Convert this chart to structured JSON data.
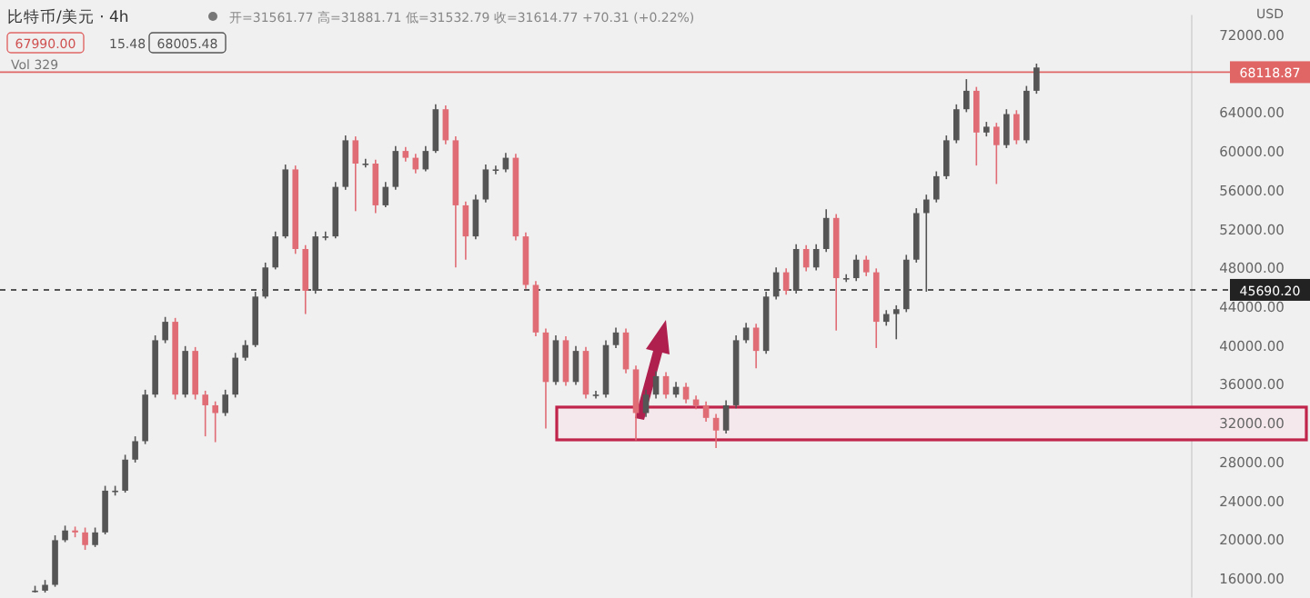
{
  "chart_data": {
    "type": "candlestick",
    "title": "比特币/美元 · 4h",
    "subtitle": "开=31561.77 高=31881.71 低=31532.79 收=31614.77 +70.31 (+0.22%)",
    "annotations": [
      "67990.00",
      "15.48",
      "68005.48",
      "Vol 329",
      "USD"
    ],
    "categories": [
      null,
      null,
      null,
      null,
      null,
      null,
      null,
      null,
      null,
      null,
      null,
      null,
      null,
      null,
      null,
      null,
      null,
      null,
      null,
      null,
      null,
      null,
      null,
      null,
      null,
      null,
      null,
      null,
      null,
      null,
      null,
      null,
      null,
      null,
      null,
      null,
      null,
      null,
      null,
      null,
      null,
      null,
      null,
      null,
      null,
      null,
      null,
      null,
      null,
      null,
      null,
      null,
      null,
      null,
      null,
      null,
      null,
      null,
      null,
      null,
      null,
      null,
      null,
      null,
      null,
      null,
      null,
      null,
      null,
      null,
      null,
      null,
      null,
      null,
      null,
      null,
      null,
      null,
      null,
      null,
      null,
      null,
      null,
      null,
      null,
      null,
      null,
      null,
      null,
      null,
      null,
      null,
      null,
      null,
      null,
      null,
      null,
      null,
      null,
      null,
      null,
      null,
      null,
      null,
      null,
      null,
      null,
      null,
      null,
      null,
      null,
      null,
      null,
      null,
      null,
      null,
      null,
      null,
      null
    ],
    "colors": [
      null,
      null,
      null,
      "#555555",
      "#555555",
      "#555555",
      "#555555",
      "#e06c75",
      "#e06c75",
      "#555555",
      "#555555",
      "#555555",
      "#555555",
      "#555555",
      "#555555",
      "#555555",
      "#555555",
      "#e06c75",
      "#555555",
      "#e06c75",
      "#e06c75",
      "#e06c75",
      "#555555",
      "#555555",
      "#555555",
      "#555555",
      "#555555",
      "#555555",
      "#555555",
      "#e06c75",
      "#e06c75",
      "#555555",
      "#555555",
      "#555555",
      "#555555",
      "#e06c75",
      "#555555",
      "#e06c75",
      "#555555",
      "#555555",
      "#e06c75",
      "#e06c75",
      "#555555",
      "#555555",
      "#e06c75",
      "#e06c75",
      "#e06c75",
      "#555555",
      "#555555",
      "#555555",
      "#555555",
      "#e06c75",
      "#e06c75",
      "#e06c75",
      "#e06c75",
      "#555555",
      "#e06c75",
      "#555555",
      "#e06c75",
      "#555555",
      "#555555",
      "#555555",
      "#e06c75",
      "#e06c75",
      "#555555",
      "#555555",
      "#e06c75",
      "#555555",
      "#e06c75",
      "#e06c75",
      "#e06c75",
      "#e06c75",
      "#555555",
      "#555555",
      "#555555",
      "#e06c75",
      "#555555",
      "#555555",
      "#e06c75",
      "#555555",
      "#e06c75",
      "#555555",
      "#555555",
      "#e06c75",
      "#555555",
      "#555555",
      "#e06c75",
      "#e06c75",
      "#555555",
      "#555555",
      "#555555",
      "#555555",
      "#555555",
      "#555555",
      "#555555",
      "#555555",
      "#555555",
      "#e06c75",
      "#555555",
      "#e06c75",
      "#555555",
      "#e06c75",
      "#555555",
      "#555555",
      null,
      null,
      null,
      null,
      null,
      null,
      null,
      null,
      null,
      null,
      null,
      null,
      null,
      null,
      null
    ],
    "ohlc": [
      null,
      null,
      null,
      [
        14700,
        15200,
        14500,
        14700
      ],
      [
        14700,
        15800,
        14500,
        15300
      ],
      [
        15300,
        20400,
        15100,
        19900
      ],
      [
        19900,
        21400,
        19700,
        20900
      ],
      [
        20900,
        21300,
        20200,
        20700
      ],
      [
        20700,
        21200,
        18900,
        19400
      ],
      [
        19400,
        21200,
        19200,
        20700
      ],
      [
        20700,
        25500,
        20500,
        25000
      ],
      [
        25000,
        25500,
        24500,
        25000
      ],
      [
        25000,
        28700,
        24800,
        28200
      ],
      [
        28200,
        30600,
        27900,
        30100
      ],
      [
        30100,
        35400,
        29800,
        34900
      ],
      [
        34900,
        41000,
        34600,
        40500
      ],
      [
        40500,
        42900,
        40200,
        42400
      ],
      [
        42400,
        42800,
        34400,
        34900
      ],
      [
        34900,
        39900,
        34600,
        39400
      ],
      [
        39400,
        39800,
        34400,
        34900
      ],
      [
        34900,
        35300,
        30600,
        33800
      ],
      [
        33800,
        34200,
        30000,
        33000
      ],
      [
        33000,
        35400,
        32700,
        34900
      ],
      [
        34900,
        39200,
        34600,
        38700
      ],
      [
        38700,
        40500,
        38400,
        40000
      ],
      [
        40000,
        45500,
        39800,
        45000
      ],
      [
        45000,
        48500,
        44800,
        48000
      ],
      [
        48000,
        51700,
        47800,
        51200
      ],
      [
        51200,
        58600,
        51000,
        58100
      ],
      [
        58100,
        58500,
        49400,
        49900
      ],
      [
        49900,
        50300,
        43200,
        45600
      ],
      [
        45600,
        51700,
        45300,
        51200
      ],
      [
        51200,
        51700,
        50800,
        51200
      ],
      [
        51200,
        56800,
        51000,
        56300
      ],
      [
        56300,
        61600,
        56000,
        61100
      ],
      [
        61100,
        61500,
        53800,
        58700
      ],
      [
        58700,
        59200,
        58300,
        58700
      ],
      [
        58700,
        59100,
        53600,
        54400
      ],
      [
        54400,
        56800,
        54200,
        56300
      ],
      [
        56300,
        60500,
        56000,
        60000
      ],
      [
        60000,
        60400,
        58900,
        59300
      ],
      [
        59300,
        59700,
        57700,
        58100
      ],
      [
        58100,
        60500,
        57900,
        60000
      ],
      [
        60000,
        64800,
        59800,
        64300
      ],
      [
        64300,
        64700,
        60700,
        61100
      ],
      [
        61100,
        61500,
        48000,
        54400
      ],
      [
        54400,
        54800,
        48800,
        51200
      ],
      [
        51200,
        55500,
        50900,
        55000
      ],
      [
        55000,
        58600,
        54700,
        58100
      ],
      [
        58100,
        58500,
        57600,
        58100
      ],
      [
        58100,
        59800,
        57800,
        59300
      ],
      [
        59300,
        59700,
        50800,
        51200
      ],
      [
        51200,
        51600,
        45800,
        46200
      ],
      [
        46200,
        46600,
        40900,
        41300
      ],
      [
        41300,
        41700,
        31400,
        36200
      ],
      [
        36200,
        41000,
        35900,
        40500
      ],
      [
        40500,
        40900,
        35800,
        36200
      ],
      [
        36200,
        39900,
        35900,
        39400
      ],
      [
        39400,
        39800,
        34500,
        34900
      ],
      [
        34900,
        35300,
        34500,
        34900
      ],
      [
        34900,
        40500,
        34600,
        40000
      ],
      [
        40000,
        41800,
        39700,
        41300
      ],
      [
        41300,
        41700,
        37100,
        37500
      ],
      [
        37500,
        37900,
        30200,
        33000
      ],
      [
        33000,
        35400,
        32600,
        34900
      ],
      [
        34900,
        37300,
        34500,
        36800
      ],
      [
        36800,
        37200,
        34500,
        34900
      ],
      [
        34900,
        36200,
        34600,
        35700
      ],
      [
        35700,
        36100,
        34000,
        34400
      ],
      [
        34400,
        34800,
        33400,
        33800
      ],
      [
        33800,
        34200,
        32100,
        32500
      ],
      [
        32500,
        32900,
        29400,
        31200
      ],
      [
        31200,
        34300,
        30900,
        33800
      ],
      [
        33800,
        41000,
        33500,
        40500
      ],
      [
        40500,
        42300,
        40200,
        41800
      ],
      [
        41800,
        42200,
        37600,
        39400
      ],
      [
        39400,
        45500,
        39100,
        45000
      ],
      [
        45000,
        48000,
        44700,
        47500
      ],
      [
        47500,
        47900,
        45200,
        45600
      ],
      [
        45600,
        50400,
        45300,
        49900
      ],
      [
        49900,
        50300,
        47600,
        48000
      ],
      [
        48000,
        50400,
        47700,
        49900
      ],
      [
        49900,
        54000,
        49600,
        53100
      ],
      [
        53100,
        53500,
        41500,
        46900
      ],
      [
        46900,
        47300,
        46500,
        46900
      ],
      [
        46900,
        49300,
        46600,
        48800
      ],
      [
        48800,
        49200,
        47100,
        47500
      ],
      [
        47500,
        47900,
        39700,
        42400
      ],
      [
        42400,
        43600,
        42000,
        43200
      ],
      [
        43200,
        44100,
        40600,
        43700
      ],
      [
        43700,
        49300,
        43400,
        48800
      ],
      [
        48800,
        54100,
        48500,
        53600
      ],
      [
        53600,
        55500,
        45500,
        55000
      ],
      [
        55000,
        57900,
        54700,
        57400
      ],
      [
        57400,
        61600,
        57100,
        61100
      ],
      [
        61100,
        64800,
        60800,
        64300
      ],
      [
        64300,
        67400,
        64000,
        66200
      ],
      [
        66200,
        66600,
        58500,
        61900
      ],
      [
        61900,
        63000,
        61500,
        62500
      ],
      [
        62500,
        62900,
        56600,
        60600
      ],
      [
        60600,
        64300,
        60300,
        63800
      ],
      [
        63800,
        64200,
        60700,
        61100
      ],
      [
        61100,
        66700,
        60800,
        66200
      ],
      [
        66200,
        69000,
        65900,
        68600
      ],
      null,
      null,
      null,
      null,
      null,
      null,
      null,
      null,
      null,
      null,
      null,
      null,
      null,
      null,
      null
    ],
    "ylim": [
      14000,
      74000
    ],
    "yticks": [
      {
        "value": 16000,
        "label": "16000.00"
      },
      {
        "value": 20000,
        "label": "20000.00"
      },
      {
        "value": 24000,
        "label": "24000.00"
      },
      {
        "value": 28000,
        "label": "28000.00"
      },
      {
        "value": 32000,
        "label": "32000.00"
      },
      {
        "value": 36000,
        "label": "36000.00"
      },
      {
        "value": 40000,
        "label": "40000.00"
      },
      {
        "value": 44000,
        "label": "44000.00"
      },
      {
        "value": 48000,
        "label": "48000.00"
      },
      {
        "value": 52000,
        "label": "52000.00"
      },
      {
        "value": 56000,
        "label": "56000.00"
      },
      {
        "value": 60000,
        "label": "60000.00"
      },
      {
        "value": 64000,
        "label": "64000.00"
      },
      {
        "value": 72000,
        "label": "72000.00"
      }
    ],
    "ref_lines": [
      {
        "axis": "y",
        "value": 45690.2,
        "label": "45690.20",
        "color": "#222222",
        "line_style": "dashed"
      },
      {
        "axis": "y",
        "value": 68118.87,
        "label": "68118.87",
        "color": "#e06666",
        "line_style": "solid"
      }
    ],
    "bands": [
      {
        "axis": "y",
        "from": 30240,
        "to": 33610,
        "color": "#c0244a"
      }
    ],
    "tick_labels": "y",
    "grid": false,
    "legend": false
  }
}
